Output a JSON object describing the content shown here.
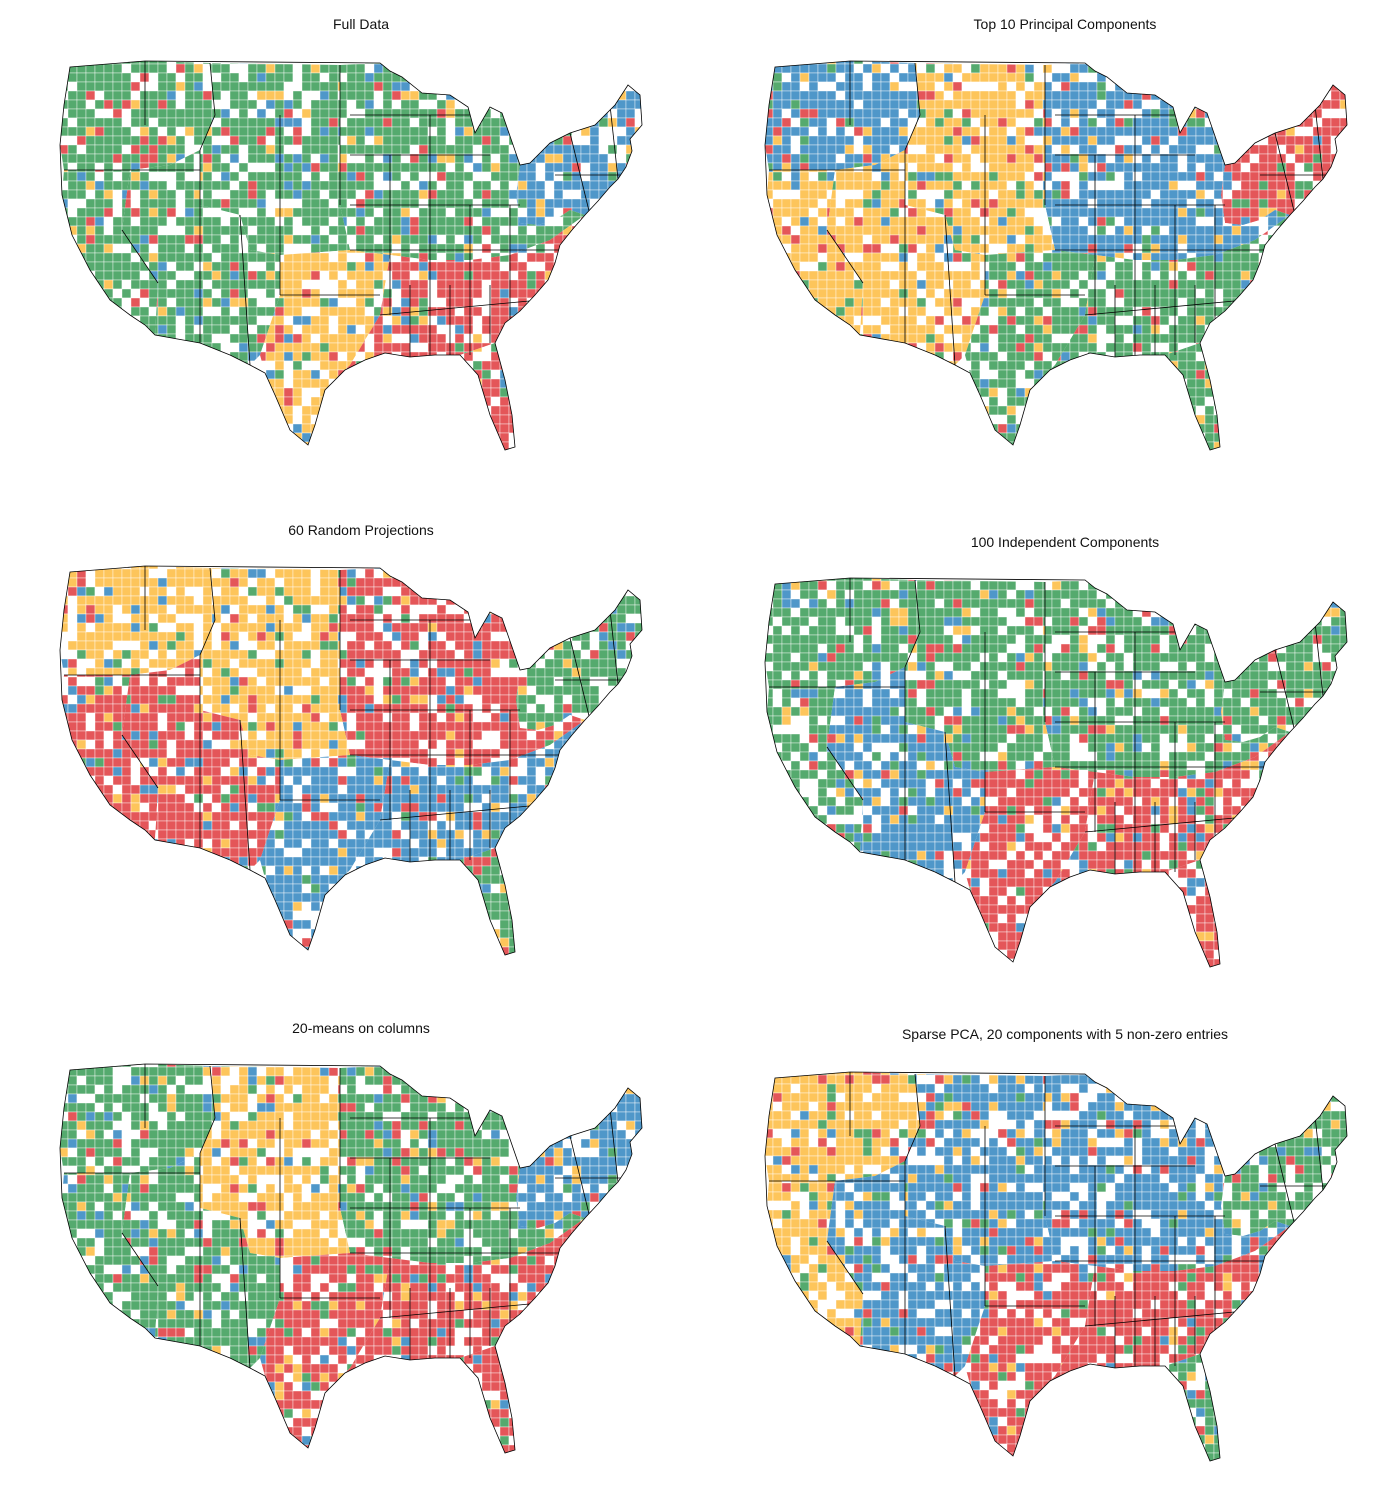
{
  "colors": {
    "blue": "#4f97c9",
    "green": "#55aa6e",
    "yellow": "#fdc55b",
    "red": "#e45659",
    "empty": "#ffffff",
    "border": "#000000"
  },
  "legend_note": "",
  "panels": [
    {
      "title": "Full Data",
      "regions": [
        {
          "name": "northeast",
          "color": "blue"
        },
        {
          "name": "midwest",
          "color": "green"
        },
        {
          "name": "northwest",
          "color": "green"
        },
        {
          "name": "mountain",
          "color": "green"
        },
        {
          "name": "california",
          "color": "green"
        },
        {
          "name": "southwest",
          "color": "green"
        },
        {
          "name": "south",
          "color": "red"
        },
        {
          "name": "plains",
          "color": "yellow"
        },
        {
          "name": "florida",
          "color": "red"
        }
      ]
    },
    {
      "title": "Top 10 Principal Components",
      "regions": [
        {
          "name": "northeast",
          "color": "red"
        },
        {
          "name": "midwest",
          "color": "blue"
        },
        {
          "name": "northwest",
          "color": "blue"
        },
        {
          "name": "mountain",
          "color": "yellow"
        },
        {
          "name": "california",
          "color": "yellow"
        },
        {
          "name": "southwest",
          "color": "yellow"
        },
        {
          "name": "south",
          "color": "green"
        },
        {
          "name": "plains",
          "color": "green"
        },
        {
          "name": "florida",
          "color": "green"
        }
      ]
    },
    {
      "title": "60 Random Projections",
      "regions": [
        {
          "name": "northeast",
          "color": "green"
        },
        {
          "name": "midwest",
          "color": "red"
        },
        {
          "name": "northwest",
          "color": "yellow"
        },
        {
          "name": "mountain",
          "color": "yellow"
        },
        {
          "name": "california",
          "color": "red"
        },
        {
          "name": "southwest",
          "color": "red"
        },
        {
          "name": "south",
          "color": "blue"
        },
        {
          "name": "plains",
          "color": "blue"
        },
        {
          "name": "florida",
          "color": "green"
        }
      ]
    },
    {
      "title": "100 Independent Components",
      "regions": [
        {
          "name": "northeast",
          "color": "green"
        },
        {
          "name": "midwest",
          "color": "green"
        },
        {
          "name": "northwest",
          "color": "green"
        },
        {
          "name": "mountain",
          "color": "green"
        },
        {
          "name": "california",
          "color": "green"
        },
        {
          "name": "southwest",
          "color": "blue"
        },
        {
          "name": "south",
          "color": "red"
        },
        {
          "name": "plains",
          "color": "red"
        },
        {
          "name": "florida",
          "color": "red"
        }
      ]
    },
    {
      "title": "20-means on columns",
      "regions": [
        {
          "name": "northeast",
          "color": "blue"
        },
        {
          "name": "midwest",
          "color": "green"
        },
        {
          "name": "northwest",
          "color": "green"
        },
        {
          "name": "mountain",
          "color": "yellow"
        },
        {
          "name": "california",
          "color": "green"
        },
        {
          "name": "southwest",
          "color": "green"
        },
        {
          "name": "south",
          "color": "red"
        },
        {
          "name": "plains",
          "color": "red"
        },
        {
          "name": "florida",
          "color": "red"
        }
      ]
    },
    {
      "title": "Sparse PCA, 20 components with 5 non-zero entries",
      "regions": [
        {
          "name": "northeast",
          "color": "green"
        },
        {
          "name": "midwest",
          "color": "blue"
        },
        {
          "name": "northwest",
          "color": "yellow"
        },
        {
          "name": "mountain",
          "color": "blue"
        },
        {
          "name": "california",
          "color": "yellow"
        },
        {
          "name": "southwest",
          "color": "blue"
        },
        {
          "name": "south",
          "color": "red"
        },
        {
          "name": "plains",
          "color": "red"
        },
        {
          "name": "florida",
          "color": "green"
        }
      ]
    }
  ]
}
